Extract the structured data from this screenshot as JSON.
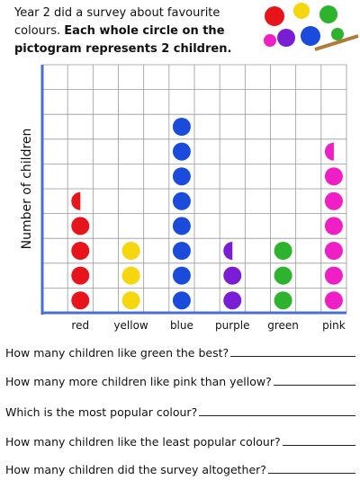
{
  "intro": {
    "text": "Year 2 did a survey about favourite colours.",
    "bold": "Each whole circle on the pictogram represents 2 children."
  },
  "chart_data": {
    "type": "pictogram",
    "y_label": "Number of children",
    "categories": [
      "red",
      "yellow",
      "blue",
      "purple",
      "green",
      "pink"
    ],
    "values": [
      4.5,
      3,
      8,
      2.5,
      3,
      6.5
    ],
    "colors": [
      "#e8141c",
      "#f5d60f",
      "#1a4bdb",
      "#7a1ed6",
      "#2db32d",
      "#ee1fc4"
    ],
    "ylim": [
      0,
      10
    ]
  },
  "questions": [
    "How many children like green the best?",
    "How many more children like pink than yellow?",
    "Which is the most popular colour?",
    "How many children like the least popular colour?",
    "How many children did the survey altogether?"
  ]
}
